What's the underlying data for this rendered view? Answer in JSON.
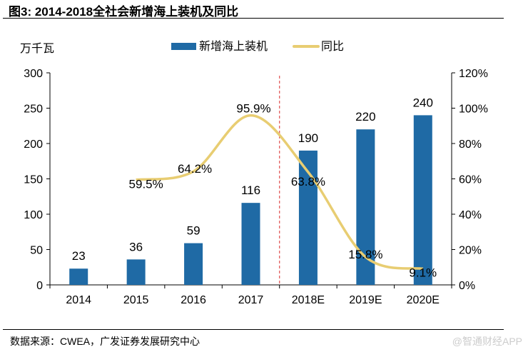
{
  "title": "图3: 2014-2018全社会新增海上装机及同比",
  "footer": "数据来源：CWEA，广发证券发展研究中心",
  "watermark": "@智通财经APP",
  "chart_data": {
    "type": "bar+line",
    "title": "图3: 2014-2018全社会新增海上装机及同比",
    "ylabel": "万千瓦",
    "categories": [
      "2014",
      "2015",
      "2016",
      "2017",
      "2018E",
      "2019E",
      "2020E"
    ],
    "series": [
      {
        "name": "新增海上装机",
        "type": "bar",
        "axis": "left",
        "color": "#1f6aa5",
        "values": [
          23,
          36,
          59,
          116,
          190,
          220,
          240
        ],
        "labels": [
          "23",
          "36",
          "59",
          "116",
          "190",
          "220",
          "240"
        ]
      },
      {
        "name": "同比",
        "type": "line",
        "axis": "right",
        "color": "#e8cd72",
        "values": [
          null,
          59.5,
          64.2,
          95.9,
          63.8,
          15.8,
          9.1
        ],
        "labels": [
          "",
          "59.5%",
          "64.2%",
          "95.9%",
          "63.8%",
          "15.8%",
          "9.1%"
        ]
      }
    ],
    "yleft": {
      "range": [
        0,
        300
      ],
      "ticks": [
        "0",
        "50",
        "100",
        "150",
        "200",
        "250",
        "300"
      ]
    },
    "yright": {
      "range": [
        0,
        120
      ],
      "ticks": [
        "0%",
        "20%",
        "40%",
        "60%",
        "80%",
        "100%",
        "120%"
      ]
    },
    "annotations": [
      {
        "type": "vertical-dashed-line",
        "between": [
          "2017",
          "2018E"
        ],
        "color": "#e05050"
      }
    ],
    "legend": "top-center",
    "grid": false
  }
}
